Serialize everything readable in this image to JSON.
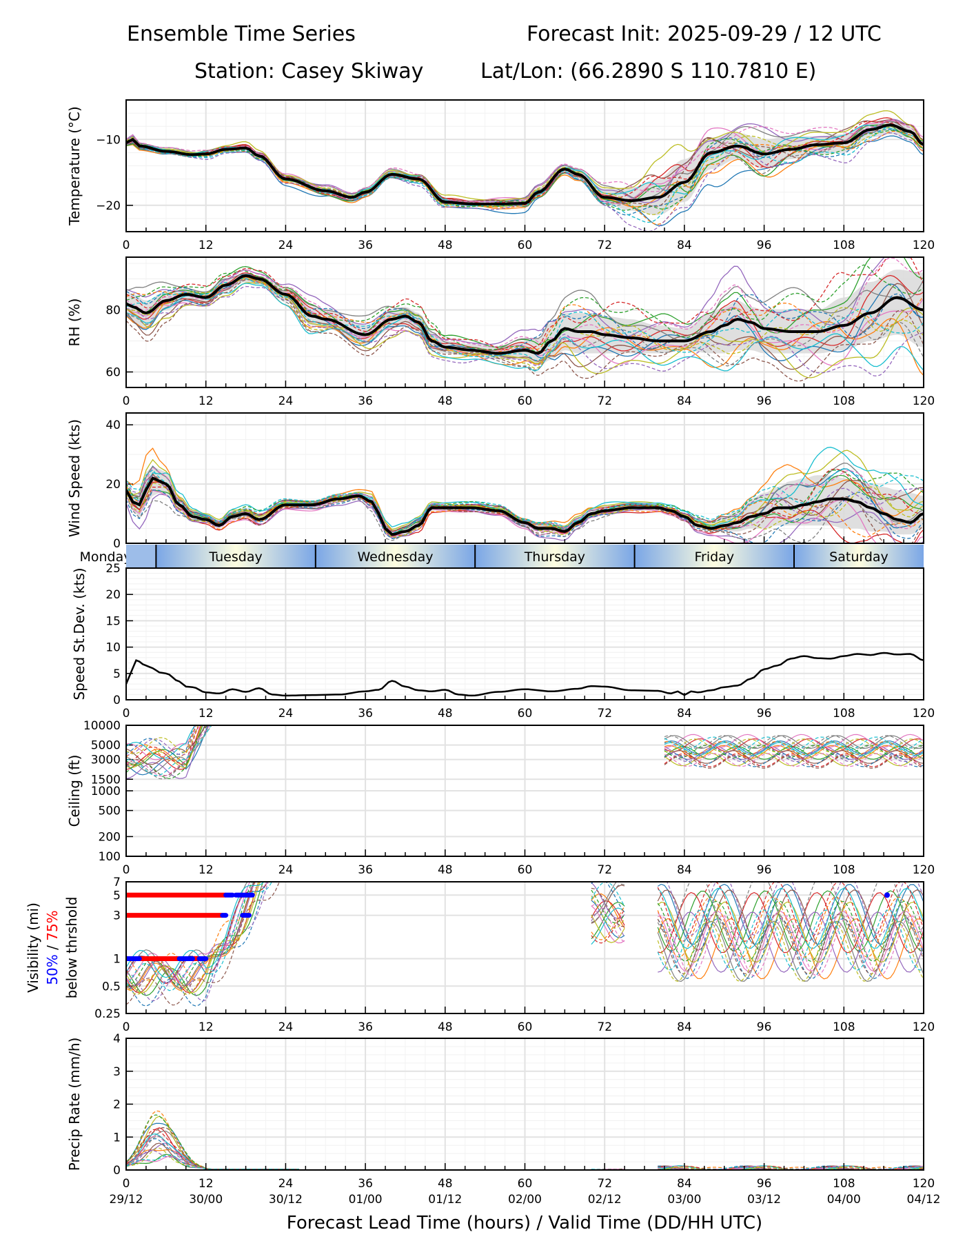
{
  "header": {
    "title_left": "Ensemble Time Series",
    "title_right": "Forecast Init: 2025-09-29 / 12 UTC",
    "station": "Station: Casey Skiway",
    "latlon": "Lat/Lon: (66.2890 S 110.7810 E)"
  },
  "xaxis": {
    "label": "Forecast Lead Time (hours) / Valid Time (DD/HH UTC)",
    "ticks": [
      0,
      12,
      24,
      36,
      48,
      60,
      72,
      84,
      96,
      108,
      120
    ],
    "valid_labels": [
      "29/12",
      "30/00",
      "30/12",
      "01/00",
      "01/12",
      "02/00",
      "02/12",
      "03/00",
      "03/12",
      "04/00",
      "04/12"
    ]
  },
  "day_band": {
    "days": [
      {
        "label": "Monday",
        "start": 0,
        "end": 4.5
      },
      {
        "label": "Tuesday",
        "start": 4.5,
        "end": 28.5
      },
      {
        "label": "Wednesday",
        "start": 28.5,
        "end": 52.5
      },
      {
        "label": "Thursday",
        "start": 52.5,
        "end": 76.5
      },
      {
        "label": "Friday",
        "start": 76.5,
        "end": 100.5
      },
      {
        "label": "Saturday",
        "start": 100.5,
        "end": 120
      }
    ]
  },
  "legend_text": {
    "vis_pct50": "50%",
    "vis_sep": " / ",
    "vis_pct75": "75%",
    "vis_below": "below thrshold",
    "color50": "#0000ff",
    "color75": "#ff0000"
  },
  "chart_data": [
    {
      "type": "line",
      "name": "temperature",
      "ylabel": "Temperature (°C)",
      "ylim": [
        -24,
        -4
      ],
      "yticks": [
        -20,
        -10
      ],
      "ytick_labels": [
        "−20",
        "−10"
      ],
      "grid": true,
      "x": [
        0,
        1,
        2,
        6,
        10,
        12,
        15,
        18,
        20,
        24,
        30,
        34,
        36,
        40,
        44,
        48,
        52,
        56,
        60,
        62,
        66,
        68,
        72,
        76,
        80,
        84,
        88,
        92,
        96,
        100,
        104,
        108,
        112,
        115,
        118,
        120
      ],
      "mean": [
        -10.5,
        -10,
        -11,
        -11.8,
        -12.3,
        -12.2,
        -11.5,
        -11.3,
        -12.5,
        -16,
        -17.8,
        -18.8,
        -18,
        -15.3,
        -16,
        -19.5,
        -19.8,
        -19.8,
        -19.7,
        -18,
        -14.5,
        -15.3,
        -18.8,
        -19.3,
        -18.8,
        -16.5,
        -12,
        -11,
        -12.2,
        -11.5,
        -10.8,
        -10.5,
        -8.5,
        -7.8,
        -8.8,
        -10.8
      ],
      "spread_low": [
        -10.8,
        -10.5,
        -11.4,
        -12.2,
        -12.6,
        -12.6,
        -11.8,
        -11.8,
        -13,
        -16.5,
        -18.3,
        -19.3,
        -18.5,
        -15.8,
        -16.5,
        -20,
        -20.3,
        -20.3,
        -20.2,
        -18.5,
        -15,
        -16,
        -19.8,
        -20.8,
        -21.5,
        -19.5,
        -14.5,
        -13,
        -14.5,
        -13,
        -12.3,
        -12,
        -9.7,
        -9.2,
        -9.8,
        -11.5
      ],
      "spread_high": [
        -10.2,
        -9.6,
        -10.7,
        -11.5,
        -12,
        -11.8,
        -11.2,
        -10.9,
        -12,
        -15.5,
        -17.3,
        -18.4,
        -17.5,
        -14.8,
        -15.5,
        -19,
        -19.3,
        -19.1,
        -18.9,
        -17.3,
        -14,
        -14.7,
        -17.5,
        -17.3,
        -16,
        -13,
        -9.7,
        -9,
        -10,
        -9.5,
        -9.5,
        -9.2,
        -7.5,
        -7,
        -7.8,
        -10
      ]
    },
    {
      "type": "line",
      "name": "relative-humidity",
      "ylabel": "RH (%)",
      "ylim": [
        55,
        97
      ],
      "yticks": [
        60,
        80
      ],
      "ytick_labels": [
        "60",
        "80"
      ],
      "grid": true,
      "x": [
        0,
        1,
        3,
        6,
        9,
        12,
        15,
        18,
        20,
        24,
        28,
        30,
        36,
        40,
        42,
        44,
        46,
        48,
        52,
        56,
        60,
        62,
        64,
        66,
        68,
        70,
        72,
        76,
        80,
        84,
        88,
        90,
        92,
        94,
        96,
        100,
        104,
        108,
        112,
        116,
        120
      ],
      "mean": [
        82,
        81,
        79,
        83,
        85,
        84,
        88,
        91,
        90,
        85,
        78,
        77,
        72,
        77,
        78,
        76,
        70,
        68,
        67,
        66,
        67,
        66,
        70,
        74,
        73,
        73,
        72,
        71,
        70,
        70,
        73,
        75,
        77,
        76,
        74,
        73,
        73,
        75,
        79,
        84,
        80
      ],
      "spread_low": [
        78,
        76,
        74,
        80,
        83,
        82,
        86,
        89,
        88,
        83,
        75,
        74,
        69,
        74,
        75,
        73,
        67,
        66,
        65,
        64,
        64,
        62,
        64,
        67,
        66,
        66,
        66,
        66,
        66,
        67,
        66,
        66,
        67,
        67,
        66,
        66,
        66,
        67,
        70,
        72,
        68
      ],
      "spread_high": [
        86,
        85,
        83,
        86,
        87,
        86,
        90,
        92,
        91,
        87,
        81,
        80,
        75,
        80,
        81,
        79,
        73,
        70,
        69,
        68,
        70,
        71,
        76,
        79,
        79,
        79,
        78,
        77,
        75,
        74,
        79,
        81,
        83,
        81,
        80,
        80,
        80,
        84,
        89,
        93,
        92
      ]
    },
    {
      "type": "line",
      "name": "wind-speed",
      "ylabel": "Wind Speed (kts)",
      "ylim": [
        0,
        44
      ],
      "yticks": [
        0,
        20,
        40
      ],
      "ytick_labels": [
        "0",
        "20",
        "40"
      ],
      "grid": true,
      "x": [
        0,
        1,
        2,
        3,
        4,
        5,
        6,
        8,
        10,
        12,
        14,
        16,
        18,
        20,
        24,
        28,
        32,
        35,
        37,
        38,
        39,
        40,
        42,
        44,
        46,
        48,
        52,
        56,
        60,
        62,
        64,
        66,
        68,
        70,
        72,
        76,
        78,
        80,
        82,
        84,
        86,
        88,
        90,
        92,
        94,
        96,
        98,
        100,
        102,
        104,
        106,
        108,
        110,
        112,
        114,
        116,
        118,
        120
      ],
      "mean": [
        18,
        14,
        13,
        18,
        22,
        21,
        20,
        13,
        9,
        8,
        6,
        9,
        10,
        8,
        13,
        13,
        15,
        16,
        14,
        10,
        5,
        3,
        4,
        6,
        12,
        12,
        12,
        11,
        7,
        5,
        5,
        4,
        7,
        10,
        11,
        12,
        12,
        12,
        11,
        9,
        6,
        5,
        6,
        7,
        9,
        10,
        12,
        12,
        13,
        14,
        15,
        15,
        14,
        12,
        10,
        8,
        7,
        10
      ],
      "spread_low": [
        16,
        11,
        9,
        13,
        16,
        17,
        16,
        11,
        8,
        7,
        5,
        8,
        9,
        7,
        12,
        12,
        14,
        15,
        12,
        8,
        3,
        2,
        3,
        5,
        11,
        11,
        11,
        10,
        6,
        4,
        4,
        3,
        6,
        9,
        10,
        11,
        11,
        11,
        10,
        8,
        5,
        4,
        4,
        4,
        5,
        5,
        6,
        6,
        6,
        6,
        6,
        5,
        5,
        4,
        4,
        3,
        3,
        5
      ],
      "spread_high": [
        20,
        17,
        17,
        24,
        26,
        25,
        24,
        16,
        11,
        9,
        7,
        11,
        12,
        10,
        14,
        14,
        16,
        17,
        16,
        12,
        7,
        5,
        6,
        8,
        13,
        13,
        13,
        12,
        8,
        7,
        7,
        6,
        9,
        12,
        13,
        13,
        13,
        13,
        12,
        10,
        8,
        7,
        9,
        11,
        15,
        17,
        19,
        21,
        22,
        23,
        23,
        22,
        21,
        20,
        19,
        18,
        17,
        16
      ]
    },
    {
      "type": "line",
      "name": "speed-std-dev",
      "ylabel": "Speed St.Dev. (kts)",
      "ylim": [
        0,
        25
      ],
      "yticks": [
        0,
        5,
        10,
        15,
        20,
        25
      ],
      "ytick_labels": [
        "0",
        "5",
        "10",
        "15",
        "20",
        "25"
      ],
      "grid": true,
      "x": [
        0,
        1,
        1.5,
        3,
        4,
        5,
        6,
        8,
        9,
        10,
        12,
        14,
        16,
        18,
        20,
        22,
        24,
        28,
        32,
        36,
        38,
        40,
        42,
        44,
        46,
        48,
        50,
        52,
        56,
        60,
        64,
        68,
        70,
        72,
        76,
        80,
        82,
        83,
        84,
        85,
        86,
        88,
        90,
        92,
        94,
        96,
        98,
        100,
        102,
        104,
        106,
        108,
        110,
        112,
        114,
        116,
        118,
        120
      ],
      "values": [
        3,
        6,
        7.5,
        6.5,
        6,
        5.2,
        5,
        3.5,
        2.5,
        2.4,
        1.4,
        1.2,
        2,
        1.5,
        2.2,
        1,
        0.8,
        0.9,
        1,
        1.6,
        1.9,
        3.6,
        2.5,
        1.8,
        1.6,
        1.9,
        1,
        0.8,
        1.5,
        2,
        1.6,
        2.1,
        2.6,
        2.5,
        1.8,
        1.7,
        1.2,
        1.6,
        0.9,
        1.6,
        1.4,
        1.8,
        2.4,
        2.7,
        4,
        5.8,
        6.5,
        7.8,
        8.3,
        7.9,
        7.8,
        8.3,
        8.7,
        8.5,
        8.9,
        8.6,
        8.7,
        7.5
      ]
    },
    {
      "type": "line",
      "name": "ceiling",
      "ylabel": "Ceiling (ft)",
      "yscale": "log",
      "ylim": [
        100,
        10000
      ],
      "yticks": [
        100,
        200,
        500,
        1000,
        1500,
        3000,
        5000,
        10000
      ],
      "ytick_labels": [
        "100",
        "200",
        "500",
        "1000",
        "1500",
        "3000",
        "5000",
        "10000"
      ],
      "grid": true,
      "member_ranges": [
        {
          "x": [
            0,
            14
          ],
          "low": 1500,
          "high": 10000
        },
        {
          "x": [
            81,
            120
          ],
          "low": 2200,
          "high": 10000
        }
      ]
    },
    {
      "type": "line",
      "name": "visibility",
      "ylabel": "Visibility (mi)",
      "yscale": "log",
      "ylim": [
        0.25,
        7
      ],
      "yticks": [
        0.25,
        0.5,
        1,
        3,
        5,
        7
      ],
      "ytick_labels": [
        "0.25",
        "0.5",
        "1",
        "3",
        "5",
        "7"
      ],
      "grid": true,
      "threshold_bars": [
        {
          "threshold": 5,
          "pct75": [
            0,
            15
          ],
          "pct50": [
            [
              15,
              16
            ],
            [
              16.5,
              19
            ]
          ]
        },
        {
          "threshold": 3,
          "pct75": [
            0,
            14.5
          ],
          "pct50": [
            [
              14.5,
              15
            ],
            [
              17.5,
              18.5
            ]
          ]
        },
        {
          "threshold": 1,
          "pct75": [
            2,
            11
          ],
          "pct50": [
            [
              0,
              1.5
            ],
            [
              1.5,
              2
            ],
            [
              8,
              10
            ],
            [
              11,
              12
            ]
          ]
        }
      ],
      "isolated_points": [
        {
          "x": 114.5,
          "y": 5,
          "series": "50%"
        }
      ]
    },
    {
      "type": "line",
      "name": "precip-rate",
      "ylabel": "Precip Rate (mm/h)",
      "ylim": [
        0,
        4
      ],
      "yticks": [
        0,
        1,
        2,
        3,
        4
      ],
      "ytick_labels": [
        "0",
        "1",
        "2",
        "3",
        "4"
      ],
      "grid": true,
      "member_peak_max": 2.05,
      "member_peak_time": 3
    }
  ]
}
